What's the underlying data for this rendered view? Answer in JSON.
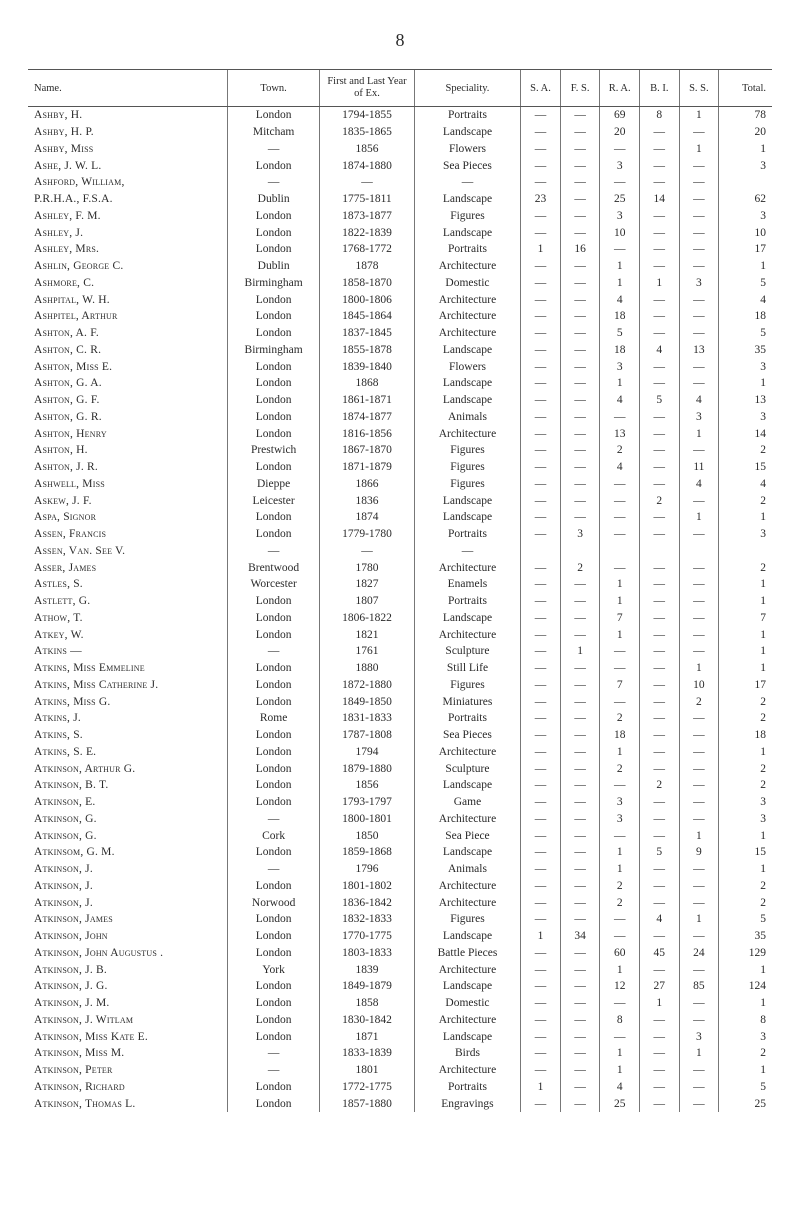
{
  "page_number": "8",
  "columns": [
    "Name.",
    "Town.",
    "First and Last Year of Ex.",
    "Speciality.",
    "S. A.",
    "F. S.",
    "R. A.",
    "B. I.",
    "S. S.",
    "Total."
  ],
  "rows": [
    {
      "name": "Ashby, H.",
      "town": "London",
      "years": "1794-1855",
      "spec": "Portraits",
      "sa": "—",
      "fs": "—",
      "ra": "69",
      "bi": "8",
      "ss": "1",
      "total": "78"
    },
    {
      "name": "Ashby, H. P.",
      "town": "Mitcham",
      "years": "1835-1865",
      "spec": "Landscape",
      "sa": "—",
      "fs": "—",
      "ra": "20",
      "bi": "—",
      "ss": "—",
      "total": "20"
    },
    {
      "name": "Ashby, Miss",
      "town": "—",
      "years": "1856",
      "spec": "Flowers",
      "sa": "—",
      "fs": "—",
      "ra": "—",
      "bi": "—",
      "ss": "1",
      "total": "1"
    },
    {
      "name": "Ashe, J. W. L.",
      "town": "London",
      "years": "1874-1880",
      "spec": "Sea Pieces",
      "sa": "—",
      "fs": "—",
      "ra": "3",
      "bi": "—",
      "ss": "—",
      "total": "3"
    },
    {
      "name": "Ashford, William,",
      "town": "—",
      "years": "—",
      "spec": "—",
      "sa": "—",
      "fs": "—",
      "ra": "—",
      "bi": "—",
      "ss": "—",
      "total": ""
    },
    {
      "name": "P.R.H.A., F.S.A.",
      "town": "Dublin",
      "years": "1775-1811",
      "spec": "Landscape",
      "sa": "23",
      "fs": "—",
      "ra": "25",
      "bi": "14",
      "ss": "—",
      "total": "62"
    },
    {
      "name": "Ashley, F. M.",
      "town": "London",
      "years": "1873-1877",
      "spec": "Figures",
      "sa": "—",
      "fs": "—",
      "ra": "3",
      "bi": "—",
      "ss": "—",
      "total": "3"
    },
    {
      "name": "Ashley, J.",
      "town": "London",
      "years": "1822-1839",
      "spec": "Landscape",
      "sa": "—",
      "fs": "—",
      "ra": "10",
      "bi": "—",
      "ss": "—",
      "total": "10"
    },
    {
      "name": "Ashley, Mrs.",
      "town": "London",
      "years": "1768-1772",
      "spec": "Portraits",
      "sa": "1",
      "fs": "16",
      "ra": "—",
      "bi": "—",
      "ss": "—",
      "total": "17"
    },
    {
      "name": "Ashlin, George C.",
      "town": "Dublin",
      "years": "1878",
      "spec": "Architecture",
      "sa": "—",
      "fs": "—",
      "ra": "1",
      "bi": "—",
      "ss": "—",
      "total": "1"
    },
    {
      "name": "Ashmore, C.",
      "town": "Birmingham",
      "years": "1858-1870",
      "spec": "Domestic",
      "sa": "—",
      "fs": "—",
      "ra": "1",
      "bi": "1",
      "ss": "3",
      "total": "5"
    },
    {
      "name": "Ashpital, W. H.",
      "town": "London",
      "years": "1800-1806",
      "spec": "Architecture",
      "sa": "—",
      "fs": "—",
      "ra": "4",
      "bi": "—",
      "ss": "—",
      "total": "4"
    },
    {
      "name": "Ashpitel, Arthur",
      "town": "London",
      "years": "1845-1864",
      "spec": "Architecture",
      "sa": "—",
      "fs": "—",
      "ra": "18",
      "bi": "—",
      "ss": "—",
      "total": "18"
    },
    {
      "name": "Ashton, A. F.",
      "town": "London",
      "years": "1837-1845",
      "spec": "Architecture",
      "sa": "—",
      "fs": "—",
      "ra": "5",
      "bi": "—",
      "ss": "—",
      "total": "5"
    },
    {
      "name": "Ashton, C. R.",
      "town": "Birmingham",
      "years": "1855-1878",
      "spec": "Landscape",
      "sa": "—",
      "fs": "—",
      "ra": "18",
      "bi": "4",
      "ss": "13",
      "total": "35"
    },
    {
      "name": "Ashton, Miss E.",
      "town": "London",
      "years": "1839-1840",
      "spec": "Flowers",
      "sa": "—",
      "fs": "—",
      "ra": "3",
      "bi": "—",
      "ss": "—",
      "total": "3"
    },
    {
      "name": "Ashton, G. A.",
      "town": "London",
      "years": "1868",
      "spec": "Landscape",
      "sa": "—",
      "fs": "—",
      "ra": "1",
      "bi": "—",
      "ss": "—",
      "total": "1"
    },
    {
      "name": "Ashton, G. F.",
      "town": "London",
      "years": "1861-1871",
      "spec": "Landscape",
      "sa": "—",
      "fs": "—",
      "ra": "4",
      "bi": "5",
      "ss": "4",
      "total": "13"
    },
    {
      "name": "Ashton, G. R.",
      "town": "London",
      "years": "1874-1877",
      "spec": "Animals",
      "sa": "—",
      "fs": "—",
      "ra": "—",
      "bi": "—",
      "ss": "3",
      "total": "3"
    },
    {
      "name": "Ashton, Henry",
      "town": "London",
      "years": "1816-1856",
      "spec": "Architecture",
      "sa": "—",
      "fs": "—",
      "ra": "13",
      "bi": "—",
      "ss": "1",
      "total": "14"
    },
    {
      "name": "Ashton, H.",
      "town": "Prestwich",
      "years": "1867-1870",
      "spec": "Figures",
      "sa": "—",
      "fs": "—",
      "ra": "2",
      "bi": "—",
      "ss": "—",
      "total": "2"
    },
    {
      "name": "Ashton, J. R.",
      "town": "London",
      "years": "1871-1879",
      "spec": "Figures",
      "sa": "—",
      "fs": "—",
      "ra": "4",
      "bi": "—",
      "ss": "11",
      "total": "15"
    },
    {
      "name": "Ashwell, Miss",
      "town": "Dieppe",
      "years": "1866",
      "spec": "Figures",
      "sa": "—",
      "fs": "—",
      "ra": "—",
      "bi": "—",
      "ss": "4",
      "total": "4"
    },
    {
      "name": "Askew, J. F.",
      "town": "Leicester",
      "years": "1836",
      "spec": "Landscape",
      "sa": "—",
      "fs": "—",
      "ra": "—",
      "bi": "2",
      "ss": "—",
      "total": "2"
    },
    {
      "name": "Aspa, Signor",
      "town": "London",
      "years": "1874",
      "spec": "Landscape",
      "sa": "—",
      "fs": "—",
      "ra": "—",
      "bi": "—",
      "ss": "1",
      "total": "1"
    },
    {
      "name": "Assen, Francis",
      "town": "London",
      "years": "1779-1780",
      "spec": "Portraits",
      "sa": "—",
      "fs": "3",
      "ra": "—",
      "bi": "—",
      "ss": "—",
      "total": "3"
    },
    {
      "name": "Assen, Van.    See V.",
      "town": "—",
      "years": "—",
      "spec": "—",
      "sa": "",
      "fs": "",
      "ra": "",
      "bi": "",
      "ss": "",
      "total": ""
    },
    {
      "name": "Asser, James",
      "town": "Brentwood",
      "years": "1780",
      "spec": "Architecture",
      "sa": "—",
      "fs": "2",
      "ra": "—",
      "bi": "—",
      "ss": "—",
      "total": "2"
    },
    {
      "name": "Astles, S.",
      "town": "Worcester",
      "years": "1827",
      "spec": "Enamels",
      "sa": "—",
      "fs": "—",
      "ra": "1",
      "bi": "—",
      "ss": "—",
      "total": "1"
    },
    {
      "name": "Astlett, G.",
      "town": "London",
      "years": "1807",
      "spec": "Portraits",
      "sa": "—",
      "fs": "—",
      "ra": "1",
      "bi": "—",
      "ss": "—",
      "total": "1"
    },
    {
      "name": "Athow, T.",
      "town": "London",
      "years": "1806-1822",
      "spec": "Landscape",
      "sa": "—",
      "fs": "—",
      "ra": "7",
      "bi": "—",
      "ss": "—",
      "total": "7"
    },
    {
      "name": "Atkey, W.",
      "town": "London",
      "years": "1821",
      "spec": "Architecture",
      "sa": "—",
      "fs": "—",
      "ra": "1",
      "bi": "—",
      "ss": "—",
      "total": "1"
    },
    {
      "name": "Atkins —",
      "town": "—",
      "years": "1761",
      "spec": "Sculpture",
      "sa": "—",
      "fs": "1",
      "ra": "—",
      "bi": "—",
      "ss": "—",
      "total": "1"
    },
    {
      "name": "Atkins, Miss Emmeline",
      "town": "London",
      "years": "1880",
      "spec": "Still Life",
      "sa": "—",
      "fs": "—",
      "ra": "—",
      "bi": "—",
      "ss": "1",
      "total": "1"
    },
    {
      "name": "Atkins, Miss Catherine J.",
      "town": "London",
      "years": "1872-1880",
      "spec": "Figures",
      "sa": "—",
      "fs": "—",
      "ra": "7",
      "bi": "—",
      "ss": "10",
      "total": "17"
    },
    {
      "name": "Atkins, Miss G.",
      "town": "London",
      "years": "1849-1850",
      "spec": "Miniatures",
      "sa": "—",
      "fs": "—",
      "ra": "—",
      "bi": "—",
      "ss": "2",
      "total": "2"
    },
    {
      "name": "Atkins, J.",
      "town": "Rome",
      "years": "1831-1833",
      "spec": "Portraits",
      "sa": "—",
      "fs": "—",
      "ra": "2",
      "bi": "—",
      "ss": "—",
      "total": "2"
    },
    {
      "name": "Atkins, S.",
      "town": "London",
      "years": "1787-1808",
      "spec": "Sea Pieces",
      "sa": "—",
      "fs": "—",
      "ra": "18",
      "bi": "—",
      "ss": "—",
      "total": "18"
    },
    {
      "name": "Atkins, S. E.",
      "town": "London",
      "years": "1794",
      "spec": "Architecture",
      "sa": "—",
      "fs": "—",
      "ra": "1",
      "bi": "—",
      "ss": "—",
      "total": "1"
    },
    {
      "name": "Atkinson, Arthur G.",
      "town": "London",
      "years": "1879-1880",
      "spec": "Sculpture",
      "sa": "—",
      "fs": "—",
      "ra": "2",
      "bi": "—",
      "ss": "—",
      "total": "2"
    },
    {
      "name": "Atkinson, B. T.",
      "town": "London",
      "years": "1856",
      "spec": "Landscape",
      "sa": "—",
      "fs": "—",
      "ra": "—",
      "bi": "2",
      "ss": "—",
      "total": "2"
    },
    {
      "name": "Atkinson, E.",
      "town": "London",
      "years": "1793-1797",
      "spec": "Game",
      "sa": "—",
      "fs": "—",
      "ra": "3",
      "bi": "—",
      "ss": "—",
      "total": "3"
    },
    {
      "name": "Atkinson, G.",
      "town": "—",
      "years": "1800-1801",
      "spec": "Architecture",
      "sa": "—",
      "fs": "—",
      "ra": "3",
      "bi": "—",
      "ss": "—",
      "total": "3"
    },
    {
      "name": "Atkinson, G.",
      "town": "Cork",
      "years": "1850",
      "spec": "Sea Piece",
      "sa": "—",
      "fs": "—",
      "ra": "—",
      "bi": "—",
      "ss": "1",
      "total": "1"
    },
    {
      "name": "Atkinsom, G. M.",
      "town": "London",
      "years": "1859-1868",
      "spec": "Landscape",
      "sa": "—",
      "fs": "—",
      "ra": "1",
      "bi": "5",
      "ss": "9",
      "total": "15"
    },
    {
      "name": "Atkinson, J.",
      "town": "—",
      "years": "1796",
      "spec": "Animals",
      "sa": "—",
      "fs": "—",
      "ra": "1",
      "bi": "—",
      "ss": "—",
      "total": "1"
    },
    {
      "name": "Atkinson, J.",
      "town": "London",
      "years": "1801-1802",
      "spec": "Architecture",
      "sa": "—",
      "fs": "—",
      "ra": "2",
      "bi": "—",
      "ss": "—",
      "total": "2"
    },
    {
      "name": "Atkinson, J.",
      "town": "Norwood",
      "years": "1836-1842",
      "spec": "Architecture",
      "sa": "—",
      "fs": "—",
      "ra": "2",
      "bi": "—",
      "ss": "—",
      "total": "2"
    },
    {
      "name": "Atkinson, James",
      "town": "London",
      "years": "1832-1833",
      "spec": "Figures",
      "sa": "—",
      "fs": "—",
      "ra": "—",
      "bi": "4",
      "ss": "1",
      "total": "5"
    },
    {
      "name": "Atkinson, John",
      "town": "London",
      "years": "1770-1775",
      "spec": "Landscape",
      "sa": "1",
      "fs": "34",
      "ra": "—",
      "bi": "—",
      "ss": "—",
      "total": "35"
    },
    {
      "name": "Atkinson, John Augustus .",
      "town": "London",
      "years": "1803-1833",
      "spec": "Battle Pieces",
      "sa": "—",
      "fs": "—",
      "ra": "60",
      "bi": "45",
      "ss": "24",
      "total": "129"
    },
    {
      "name": "Atkinson, J. B.",
      "town": "York",
      "years": "1839",
      "spec": "Architecture",
      "sa": "—",
      "fs": "—",
      "ra": "1",
      "bi": "—",
      "ss": "—",
      "total": "1"
    },
    {
      "name": "Atkinson, J. G.",
      "town": "London",
      "years": "1849-1879",
      "spec": "Landscape",
      "sa": "—",
      "fs": "—",
      "ra": "12",
      "bi": "27",
      "ss": "85",
      "total": "124"
    },
    {
      "name": "Atkinson, J. M.",
      "town": "London",
      "years": "1858",
      "spec": "Domestic",
      "sa": "—",
      "fs": "—",
      "ra": "—",
      "bi": "1",
      "ss": "—",
      "total": "1"
    },
    {
      "name": "Atkinson, J. Witlam",
      "town": "London",
      "years": "1830-1842",
      "spec": "Architecture",
      "sa": "—",
      "fs": "—",
      "ra": "8",
      "bi": "—",
      "ss": "—",
      "total": "8"
    },
    {
      "name": "Atkinson, Miss Kate E.",
      "town": "London",
      "years": "1871",
      "spec": "Landscape",
      "sa": "—",
      "fs": "—",
      "ra": "—",
      "bi": "—",
      "ss": "3",
      "total": "3"
    },
    {
      "name": "Atkinson, Miss M.",
      "town": "—",
      "years": "1833-1839",
      "spec": "Birds",
      "sa": "—",
      "fs": "—",
      "ra": "1",
      "bi": "—",
      "ss": "1",
      "total": "2"
    },
    {
      "name": "Atkinson, Peter",
      "town": "—",
      "years": "1801",
      "spec": "Architecture",
      "sa": "—",
      "fs": "—",
      "ra": "1",
      "bi": "—",
      "ss": "—",
      "total": "1"
    },
    {
      "name": "Atkinson, Richard",
      "town": "London",
      "years": "1772-1775",
      "spec": "Portraits",
      "sa": "1",
      "fs": "—",
      "ra": "4",
      "bi": "—",
      "ss": "—",
      "total": "5"
    },
    {
      "name": "Atkinson, Thomas L.",
      "town": "London",
      "years": "1857-1880",
      "spec": "Engravings",
      "sa": "—",
      "fs": "—",
      "ra": "25",
      "bi": "—",
      "ss": "—",
      "total": "25"
    }
  ]
}
